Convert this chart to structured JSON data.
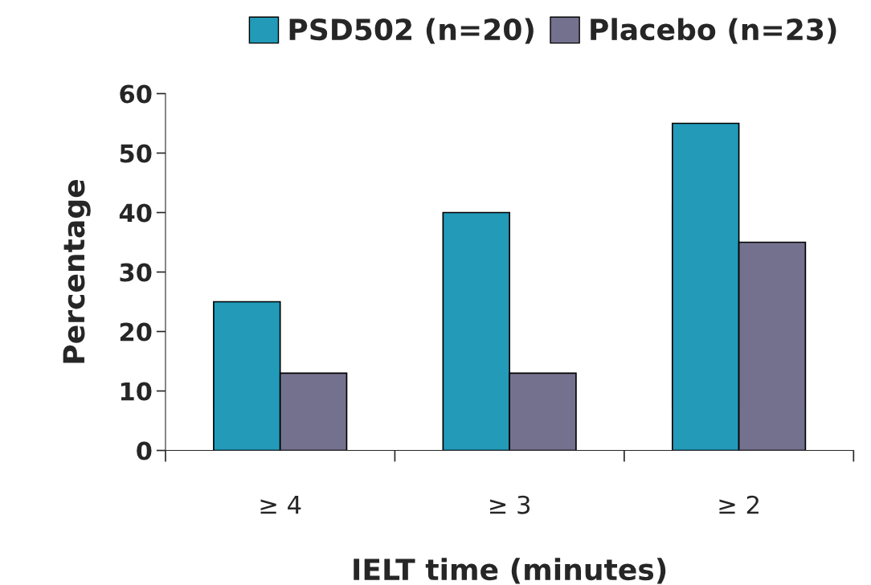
{
  "chart_data": {
    "type": "bar",
    "xlabel": "IELT time (minutes)",
    "ylabel": "Percentage",
    "categories": [
      "≥ 4",
      "≥ 3",
      "≥ 2"
    ],
    "series": [
      {
        "name": "PSD502 (n=20)",
        "color": "#229ab8",
        "values": [
          25,
          40,
          55
        ]
      },
      {
        "name": "Placebo (n=23)",
        "color": "#74718e",
        "values": [
          13,
          13,
          35
        ]
      }
    ],
    "ylim": [
      0,
      60
    ],
    "yticks": [
      0,
      10,
      20,
      30,
      40,
      50,
      60
    ],
    "grid": false,
    "legend": "top"
  }
}
